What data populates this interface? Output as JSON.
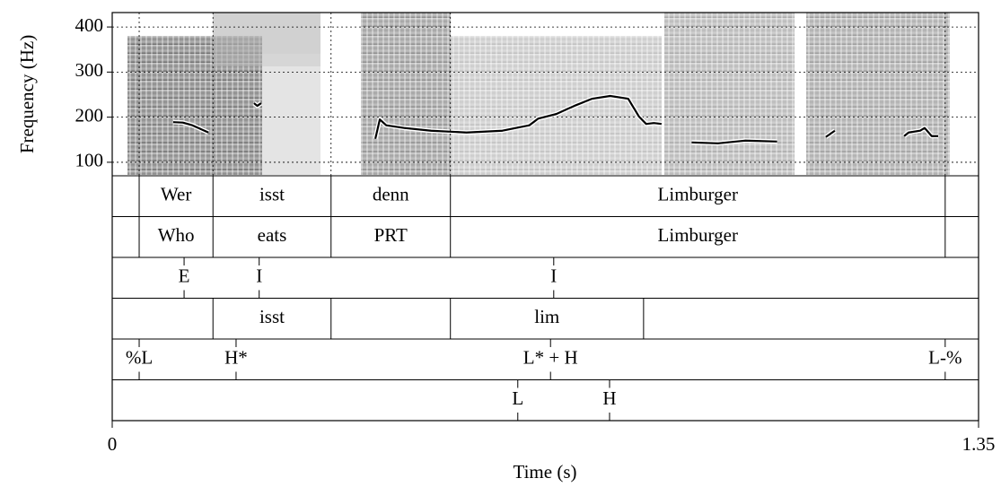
{
  "chart_data": {
    "type": "line",
    "ylabel": "Frequency (Hz)",
    "xlabel": "Time (s)",
    "xlim": [
      0,
      1.35
    ],
    "xticks": [
      0,
      1.35
    ],
    "ylim": [
      70,
      432
    ],
    "yticks": [
      100,
      200,
      300,
      400
    ],
    "grid": true,
    "series": [
      {
        "color": "#000000",
        "x": [
          0.095,
          0.11,
          0.125,
          0.15,
          0.19,
          0.221,
          0.226,
          0.232,
          0.35,
          0.41,
          0.417,
          0.427,
          0.455,
          0.497,
          0.552,
          0.608,
          0.65,
          0.664,
          0.692,
          0.72,
          0.748,
          0.776,
          0.804,
          0.821,
          0.832,
          0.844,
          0.856,
          0.88,
          0.903,
          0.944,
          0.986,
          1.036,
          1.07,
          1.112,
          1.126,
          1.18,
          1.234,
          1.241,
          1.259,
          1.266,
          1.277,
          1.287
        ],
        "values": [
          189,
          188,
          182,
          166,
          null,
          231,
          225,
          231,
          null,
          152,
          195,
          182,
          176,
          170,
          166,
          170,
          182,
          197,
          207,
          225,
          241,
          247,
          241,
          201,
          185,
          187,
          185,
          null,
          144,
          142,
          148,
          146,
          null,
          156,
          170,
          null,
          158,
          166,
          170,
          176,
          158,
          158
        ]
      }
    ],
    "tiers": [
      {
        "boundaries": [
          0.042,
          0.157,
          0.341,
          0.527,
          1.298
        ],
        "labels": [
          "Wer",
          "isst",
          "denn",
          "Limburger"
        ]
      },
      {
        "boundaries": [
          0.042,
          0.157,
          0.341,
          0.527,
          1.298
        ],
        "labels": [
          "Who",
          "eats",
          "PRT",
          "Limburger"
        ]
      },
      {
        "points": [
          {
            "time": 0.112,
            "label": "E"
          },
          {
            "time": 0.229,
            "label": "I"
          },
          {
            "time": 0.688,
            "label": "I"
          }
        ]
      },
      {
        "boundaries": [
          0.157,
          0.341,
          0.527,
          0.828
        ],
        "labels": [
          "isst",
          null,
          "lim"
        ]
      },
      {
        "points": [
          {
            "time": 0.042,
            "label": "%L"
          },
          {
            "time": 0.193,
            "label": "H*"
          },
          {
            "time": 0.683,
            "label": "L* + H"
          },
          {
            "time": 1.298,
            "label": "L-%"
          }
        ]
      },
      {
        "points": [
          {
            "time": 0.632,
            "label": "L"
          },
          {
            "time": 0.775,
            "label": "H"
          }
        ]
      }
    ]
  }
}
